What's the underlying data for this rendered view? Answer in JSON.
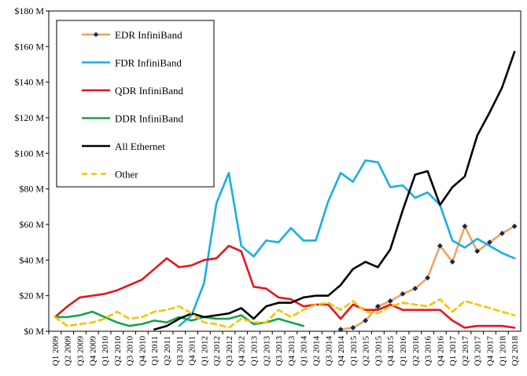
{
  "chart_data": {
    "type": "line",
    "title": "",
    "xlabel": "",
    "ylabel": "",
    "ylim": [
      0,
      180
    ],
    "y_tick_values": [
      0,
      20,
      40,
      60,
      80,
      100,
      120,
      140,
      160,
      180
    ],
    "y_tick_labels": [
      "$0 M",
      "$20 M",
      "$40 M",
      "$60 M",
      "$80 M",
      "$100 M",
      "$120 M",
      "$140 M",
      "$160 M",
      "$180 M"
    ],
    "grid": false,
    "legend_position": "top-left",
    "categories": [
      "Q1 2009",
      "Q2 2009",
      "Q3 2009",
      "Q4 2009",
      "Q1 2010",
      "Q2 2010",
      "Q3 2010",
      "Q4 2010",
      "Q1 2011",
      "Q2 2011",
      "Q3 2011",
      "Q4 2011",
      "Q1 2012",
      "Q2 2012",
      "Q3 2012",
      "Q4 2012",
      "Q1 2013",
      "Q2 2013",
      "Q3 2013",
      "Q4 2013",
      "Q1 2014",
      "Q2 2014",
      "Q3 2014",
      "Q4 2014",
      "Q1 2015",
      "Q2 2015",
      "Q3 2015",
      "Q4 2015",
      "Q1 2016",
      "Q2 2016",
      "Q3 2016",
      "Q4 2016",
      "Q1 2017",
      "Q2 2017",
      "Q3 2017",
      "Q4 2017",
      "Q1 2018",
      "Q2 2018"
    ],
    "series": [
      {
        "name": "EDR InfiniBand",
        "color": "#f4a261",
        "dash": "solid",
        "marker": "diamond",
        "values": [
          null,
          null,
          null,
          null,
          null,
          null,
          null,
          null,
          null,
          null,
          null,
          null,
          null,
          null,
          null,
          null,
          null,
          null,
          null,
          null,
          null,
          null,
          null,
          1,
          2,
          6,
          14,
          17,
          21,
          24,
          30,
          48,
          39,
          59,
          45,
          50,
          55,
          59
        ]
      },
      {
        "name": "FDR InfiniBand",
        "color": "#1aaee5",
        "dash": "solid",
        "marker": "none",
        "values": [
          null,
          null,
          null,
          null,
          null,
          null,
          null,
          null,
          null,
          null,
          3,
          9,
          27,
          72,
          89,
          48,
          42,
          51,
          50,
          58,
          51,
          51,
          73,
          89,
          84,
          96,
          95,
          81,
          82,
          75,
          78,
          71,
          51,
          47,
          52,
          48,
          44,
          41
        ]
      },
      {
        "name": "QDR InfiniBand",
        "color": "#e8141a",
        "dash": "solid",
        "marker": "none",
        "values": [
          8,
          14,
          19,
          20,
          21,
          23,
          26,
          29,
          35,
          41,
          36,
          37,
          40,
          41,
          48,
          45,
          25,
          24,
          19,
          18,
          14,
          15,
          15,
          7,
          15,
          12,
          12,
          15,
          12,
          12,
          12,
          12,
          6,
          2,
          3,
          3,
          3,
          2
        ]
      },
      {
        "name": "DDR InfiniBand",
        "color": "#16a34a",
        "dash": "solid",
        "marker": "none",
        "values": [
          8,
          8,
          9,
          11,
          8,
          5,
          3,
          4,
          6,
          5,
          8,
          6,
          8,
          7,
          7,
          9,
          4,
          5,
          7,
          5,
          3,
          null,
          null,
          null,
          null,
          null,
          null,
          null,
          null,
          null,
          null,
          null,
          null,
          null,
          null,
          null,
          null,
          null
        ]
      },
      {
        "name": "All Ethernet",
        "color": "#000000",
        "dash": "solid",
        "marker": "none",
        "values": [
          null,
          null,
          null,
          null,
          null,
          null,
          null,
          null,
          1,
          3,
          7,
          10,
          8,
          9,
          10,
          13,
          7,
          14,
          16,
          16,
          19,
          20,
          20,
          26,
          35,
          39,
          36,
          46,
          68,
          88,
          90,
          71,
          81,
          87,
          110,
          123,
          137,
          157
        ]
      },
      {
        "name": "Other",
        "color": "#f5c400",
        "dash": "dashed",
        "marker": "none",
        "values": [
          8,
          3,
          4,
          5,
          7,
          11,
          7,
          8,
          11,
          12,
          14,
          10,
          5,
          4,
          2,
          7,
          5,
          5,
          12,
          8,
          12,
          15,
          16,
          12,
          17,
          11,
          10,
          14,
          16,
          15,
          14,
          18,
          11,
          17,
          15,
          13,
          11,
          9
        ]
      }
    ]
  }
}
